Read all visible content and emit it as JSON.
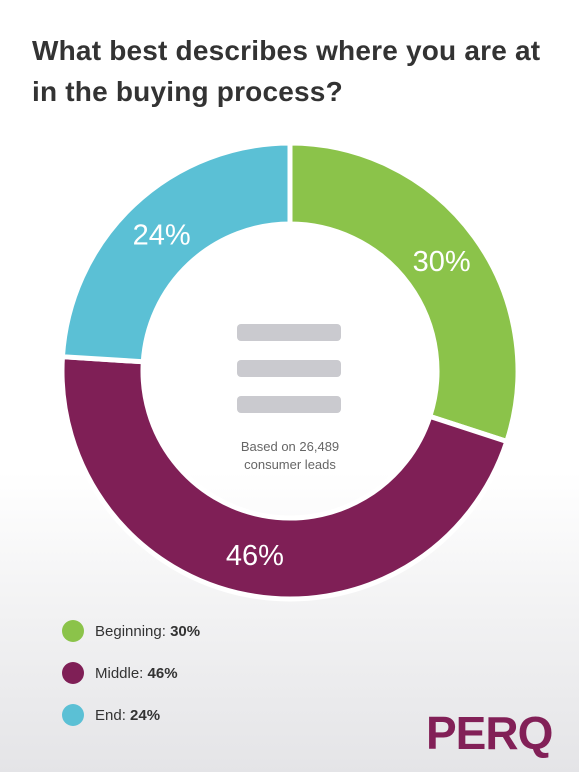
{
  "chart_data": {
    "type": "pie",
    "donut": true,
    "title": "What best describes where you are at in the buying process?",
    "slices": [
      {
        "name": "Beginning",
        "value": 30,
        "label": "30%",
        "legend_name": "Beginning:",
        "legend_value": "30%",
        "color": "#8BC34A"
      },
      {
        "name": "Middle",
        "value": 46,
        "label": "46%",
        "legend_name": "Middle:",
        "legend_value": "46%",
        "color": "#7F1F56"
      },
      {
        "name": "End",
        "value": 24,
        "label": "24%",
        "legend_name": "End:",
        "legend_value": "24%",
        "color": "#5BC0D5"
      }
    ],
    "center_note": [
      "Based on 26,489",
      "consumer leads"
    ],
    "legend_placement": "bottom-left"
  },
  "center_icon": "menu-lines-icon",
  "logo_text": "PERQ"
}
